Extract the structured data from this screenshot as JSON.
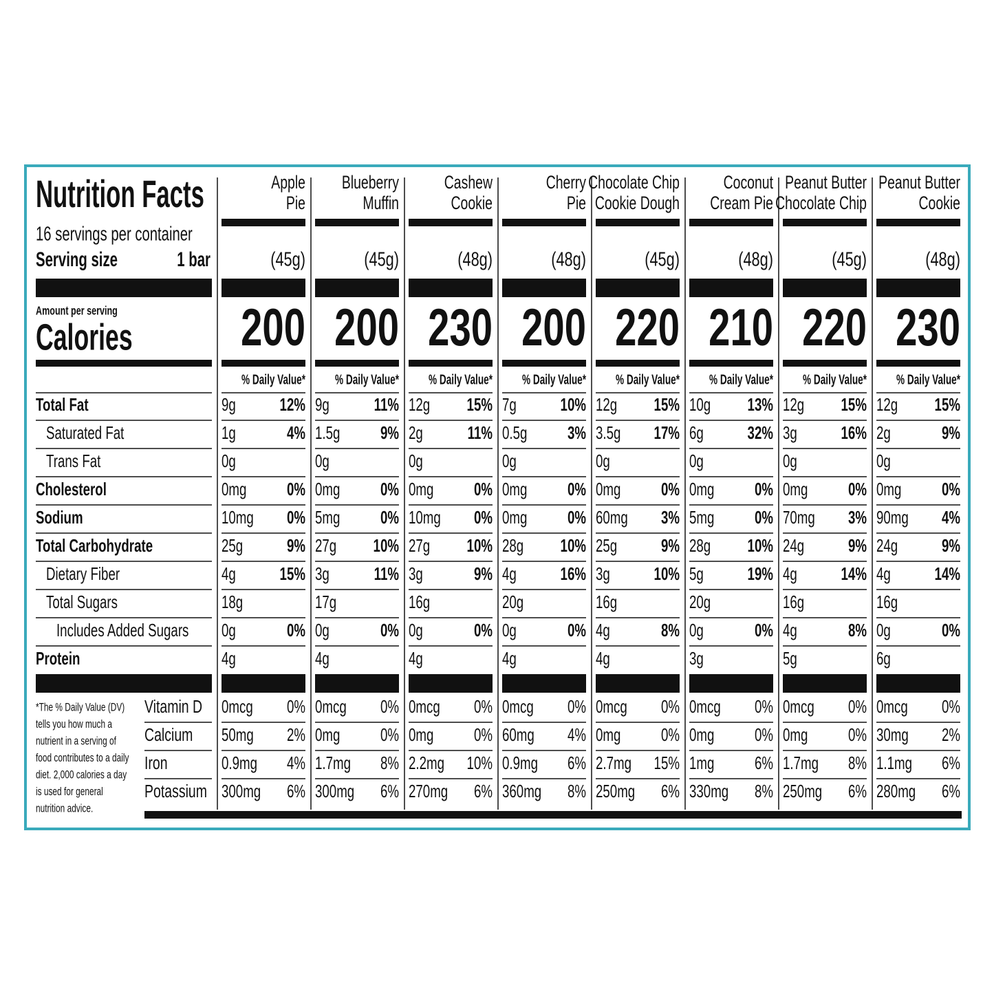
{
  "label": {
    "title": "Nutrition Facts",
    "servings_per_container": "16 servings per container",
    "serving_size_label": "Serving size",
    "serving_size": "1 bar",
    "amount_per_serving": "Amount per serving",
    "calories_label": "Calories",
    "daily_value_header": "% Daily Value*",
    "nutrient_rows": [
      {
        "name": "Total Fat",
        "bold": true,
        "level": 0
      },
      {
        "name": "Saturated Fat",
        "bold": false,
        "level": 1
      },
      {
        "name": "Trans Fat",
        "bold": false,
        "level": 1
      },
      {
        "name": "Cholesterol",
        "bold": true,
        "level": 0
      },
      {
        "name": "Sodium",
        "bold": true,
        "level": 0
      },
      {
        "name": "Total Carbohydrate",
        "bold": true,
        "level": 0
      },
      {
        "name": "Dietary Fiber",
        "bold": false,
        "level": 1
      },
      {
        "name": "Total Sugars",
        "bold": false,
        "level": 1
      },
      {
        "name": "Includes Added Sugars",
        "bold": false,
        "level": 2
      },
      {
        "name": "Protein",
        "bold": true,
        "level": 0
      }
    ],
    "vitamin_names": [
      "Vitamin D",
      "Calcium",
      "Iron",
      "Potassium"
    ],
    "footnote": [
      "*The % Daily Value (DV)",
      "tells you how much a",
      "nutrient in a serving of",
      "food contributes to a daily",
      "diet. 2,000 calories a day",
      "is used for general",
      "nutrition advice."
    ],
    "products": [
      {
        "name_lines": [
          "Apple",
          "Pie"
        ],
        "serving_grams": "(45g)",
        "calories": 200,
        "nutrients": [
          [
            "9g",
            "12%"
          ],
          [
            "1g",
            "4%"
          ],
          [
            "0g",
            null
          ],
          [
            "0mg",
            "0%"
          ],
          [
            "10mg",
            "0%"
          ],
          [
            "25g",
            "9%"
          ],
          [
            "4g",
            "15%"
          ],
          [
            "18g",
            null
          ],
          [
            "0g",
            "0%"
          ],
          [
            "4g",
            null
          ]
        ],
        "vitamins": [
          [
            "0mcg",
            "0%"
          ],
          [
            "50mg",
            "2%"
          ],
          [
            "0.9mg",
            "4%"
          ],
          [
            "300mg",
            "6%"
          ]
        ]
      },
      {
        "name_lines": [
          "Blueberry",
          "Muffin"
        ],
        "serving_grams": "(45g)",
        "calories": 200,
        "nutrients": [
          [
            "9g",
            "11%"
          ],
          [
            "1.5g",
            "9%"
          ],
          [
            "0g",
            null
          ],
          [
            "0mg",
            "0%"
          ],
          [
            "5mg",
            "0%"
          ],
          [
            "27g",
            "10%"
          ],
          [
            "3g",
            "11%"
          ],
          [
            "17g",
            null
          ],
          [
            "0g",
            "0%"
          ],
          [
            "4g",
            null
          ]
        ],
        "vitamins": [
          [
            "0mcg",
            "0%"
          ],
          [
            "0mg",
            "0%"
          ],
          [
            "1.7mg",
            "8%"
          ],
          [
            "300mg",
            "6%"
          ]
        ]
      },
      {
        "name_lines": [
          "Cashew",
          "Cookie"
        ],
        "serving_grams": "(48g)",
        "calories": 230,
        "nutrients": [
          [
            "12g",
            "15%"
          ],
          [
            "2g",
            "11%"
          ],
          [
            "0g",
            null
          ],
          [
            "0mg",
            "0%"
          ],
          [
            "10mg",
            "0%"
          ],
          [
            "27g",
            "10%"
          ],
          [
            "3g",
            "9%"
          ],
          [
            "16g",
            null
          ],
          [
            "0g",
            "0%"
          ],
          [
            "4g",
            null
          ]
        ],
        "vitamins": [
          [
            "0mcg",
            "0%"
          ],
          [
            "0mg",
            "0%"
          ],
          [
            "2.2mg",
            "10%"
          ],
          [
            "270mg",
            "6%"
          ]
        ]
      },
      {
        "name_lines": [
          "Cherry",
          "Pie"
        ],
        "serving_grams": "(48g)",
        "calories": 200,
        "nutrients": [
          [
            "7g",
            "10%"
          ],
          [
            "0.5g",
            "3%"
          ],
          [
            "0g",
            null
          ],
          [
            "0mg",
            "0%"
          ],
          [
            "0mg",
            "0%"
          ],
          [
            "28g",
            "10%"
          ],
          [
            "4g",
            "16%"
          ],
          [
            "20g",
            null
          ],
          [
            "0g",
            "0%"
          ],
          [
            "4g",
            null
          ]
        ],
        "vitamins": [
          [
            "0mcg",
            "0%"
          ],
          [
            "60mg",
            "4%"
          ],
          [
            "0.9mg",
            "6%"
          ],
          [
            "360mg",
            "8%"
          ]
        ]
      },
      {
        "name_lines": [
          "Chocolate Chip",
          "Cookie Dough"
        ],
        "serving_grams": "(45g)",
        "calories": 220,
        "nutrients": [
          [
            "12g",
            "15%"
          ],
          [
            "3.5g",
            "17%"
          ],
          [
            "0g",
            null
          ],
          [
            "0mg",
            "0%"
          ],
          [
            "60mg",
            "3%"
          ],
          [
            "25g",
            "9%"
          ],
          [
            "3g",
            "10%"
          ],
          [
            "16g",
            null
          ],
          [
            "4g",
            "8%"
          ],
          [
            "4g",
            null
          ]
        ],
        "vitamins": [
          [
            "0mcg",
            "0%"
          ],
          [
            "0mg",
            "0%"
          ],
          [
            "2.7mg",
            "15%"
          ],
          [
            "250mg",
            "6%"
          ]
        ]
      },
      {
        "name_lines": [
          "Coconut",
          "Cream Pie"
        ],
        "serving_grams": "(48g)",
        "calories": 210,
        "nutrients": [
          [
            "10g",
            "13%"
          ],
          [
            "6g",
            "32%"
          ],
          [
            "0g",
            null
          ],
          [
            "0mg",
            "0%"
          ],
          [
            "5mg",
            "0%"
          ],
          [
            "28g",
            "10%"
          ],
          [
            "5g",
            "19%"
          ],
          [
            "20g",
            null
          ],
          [
            "0g",
            "0%"
          ],
          [
            "3g",
            null
          ]
        ],
        "vitamins": [
          [
            "0mcg",
            "0%"
          ],
          [
            "0mg",
            "0%"
          ],
          [
            "1mg",
            "6%"
          ],
          [
            "330mg",
            "8%"
          ]
        ]
      },
      {
        "name_lines": [
          "Peanut Butter",
          "Chocolate Chip"
        ],
        "serving_grams": "(45g)",
        "calories": 220,
        "nutrients": [
          [
            "12g",
            "15%"
          ],
          [
            "3g",
            "16%"
          ],
          [
            "0g",
            null
          ],
          [
            "0mg",
            "0%"
          ],
          [
            "70mg",
            "3%"
          ],
          [
            "24g",
            "9%"
          ],
          [
            "4g",
            "14%"
          ],
          [
            "16g",
            null
          ],
          [
            "4g",
            "8%"
          ],
          [
            "5g",
            null
          ]
        ],
        "vitamins": [
          [
            "0mcg",
            "0%"
          ],
          [
            "0mg",
            "0%"
          ],
          [
            "1.7mg",
            "8%"
          ],
          [
            "250mg",
            "6%"
          ]
        ]
      },
      {
        "name_lines": [
          "Peanut Butter",
          "Cookie"
        ],
        "serving_grams": "(48g)",
        "calories": 230,
        "nutrients": [
          [
            "12g",
            "15%"
          ],
          [
            "2g",
            "9%"
          ],
          [
            "0g",
            null
          ],
          [
            "0mg",
            "0%"
          ],
          [
            "90mg",
            "4%"
          ],
          [
            "24g",
            "9%"
          ],
          [
            "4g",
            "14%"
          ],
          [
            "16g",
            null
          ],
          [
            "0g",
            "0%"
          ],
          [
            "6g",
            null
          ]
        ],
        "vitamins": [
          [
            "0mcg",
            "0%"
          ],
          [
            "30mg",
            "2%"
          ],
          [
            "1.1mg",
            "6%"
          ],
          [
            "280mg",
            "6%"
          ]
        ]
      }
    ]
  }
}
